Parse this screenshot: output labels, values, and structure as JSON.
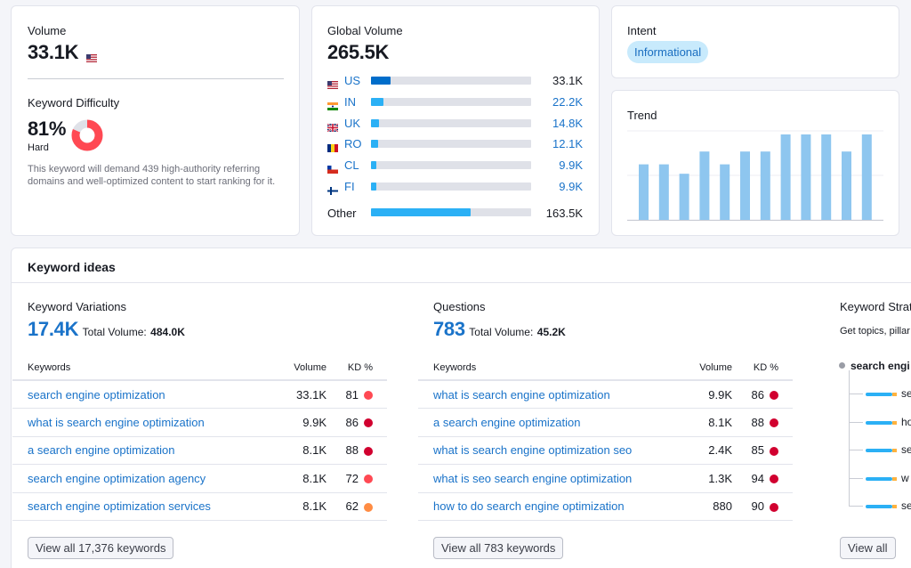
{
  "volume": {
    "label": "Volume",
    "value": "33.1K"
  },
  "difficulty": {
    "label": "Keyword Difficulty",
    "value": "81%",
    "level": "Hard",
    "percent": 81,
    "description": "This keyword will demand 439 high-authority referring domains and well-optimized content to start ranking for it."
  },
  "global": {
    "label": "Global Volume",
    "value": "265.5K",
    "countries": [
      {
        "code": "US",
        "value": "33.1K",
        "share": 0.12,
        "flag": "us-flag-icon"
      },
      {
        "code": "IN",
        "value": "22.2K",
        "share": 0.08,
        "flag": "in-flag-icon"
      },
      {
        "code": "UK",
        "value": "14.8K",
        "share": 0.05,
        "flag": "uk-flag-icon"
      },
      {
        "code": "RO",
        "value": "12.1K",
        "share": 0.045,
        "flag": "ro-flag-icon"
      },
      {
        "code": "CL",
        "value": "9.9K",
        "share": 0.035,
        "flag": "cl-flag-icon"
      },
      {
        "code": "FI",
        "value": "9.9K",
        "share": 0.035,
        "flag": "fi-flag-icon"
      }
    ],
    "other": {
      "label": "Other",
      "value": "163.5K",
      "share": 0.62
    }
  },
  "intent": {
    "label": "Intent",
    "value": "Informational"
  },
  "trend": {
    "label": "Trend",
    "values": [
      0.65,
      0.65,
      0.54,
      0.8,
      0.65,
      0.8,
      0.8,
      1.0,
      1.0,
      1.0,
      0.8,
      1.0
    ]
  },
  "ideas": {
    "title": "Keyword ideas",
    "variations": {
      "label": "Keyword Variations",
      "count": "17.4K",
      "total_label": "Total Volume:",
      "total": "484.0K",
      "headers": {
        "keyword": "Keywords",
        "volume": "Volume",
        "kd": "KD %"
      },
      "rows": [
        {
          "keyword": "search engine optimization",
          "volume": "33.1K",
          "kd": "81",
          "color": "#ff4953"
        },
        {
          "keyword": "what is search engine optimization",
          "volume": "9.9K",
          "kd": "86",
          "color": "#d1002f"
        },
        {
          "keyword": "a search engine optimization",
          "volume": "8.1K",
          "kd": "88",
          "color": "#d1002f"
        },
        {
          "keyword": "search engine optimization agency",
          "volume": "8.1K",
          "kd": "72",
          "color": "#ff4953"
        },
        {
          "keyword": "search engine optimization services",
          "volume": "8.1K",
          "kd": "62",
          "color": "#ff8c43"
        }
      ],
      "button": "View all 17,376 keywords"
    },
    "questions": {
      "label": "Questions",
      "count": "783",
      "total_label": "Total Volume:",
      "total": "45.2K",
      "headers": {
        "keyword": "Keywords",
        "volume": "Volume",
        "kd": "KD %"
      },
      "rows": [
        {
          "keyword": "what is search engine optimization",
          "volume": "9.9K",
          "kd": "86",
          "color": "#d1002f"
        },
        {
          "keyword": "a search engine optimization",
          "volume": "8.1K",
          "kd": "88",
          "color": "#d1002f"
        },
        {
          "keyword": "what is search engine optimization seo",
          "volume": "2.4K",
          "kd": "85",
          "color": "#d1002f"
        },
        {
          "keyword": "what is seo search engine optimization",
          "volume": "1.3K",
          "kd": "94",
          "color": "#d1002f"
        },
        {
          "keyword": "how to do search engine optimization",
          "volume": "880",
          "kd": "90",
          "color": "#d1002f"
        }
      ],
      "button": "View all 783 keywords"
    },
    "strategy": {
      "label": "Keyword Strat",
      "description": "Get topics, pillar",
      "root": "search engi",
      "branches": [
        "se",
        "ho",
        "se",
        "w",
        "se"
      ],
      "button": "View all"
    }
  },
  "colors": {
    "accent": "#1a73c9",
    "bar": "#2bb0f5",
    "bar_dark": "#006dca",
    "trend": "#8ec6ef"
  }
}
